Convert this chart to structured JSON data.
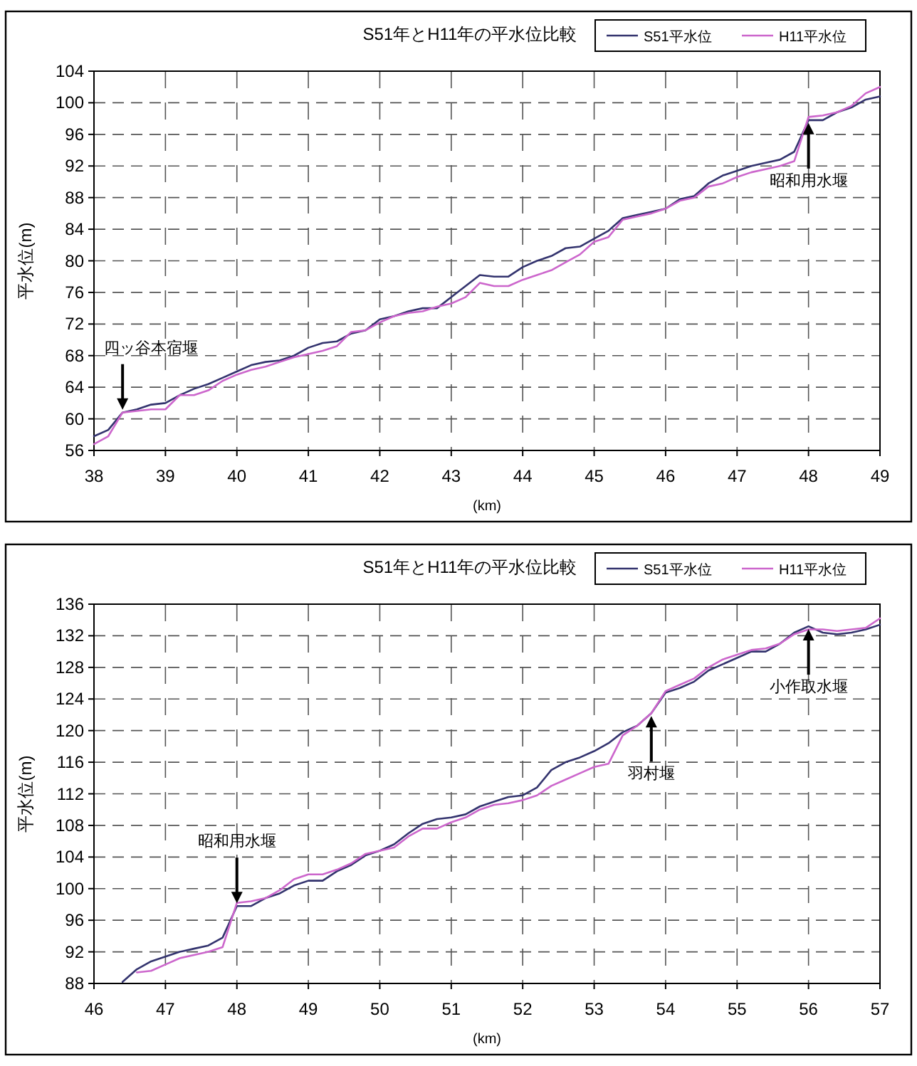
{
  "chart_data": [
    {
      "type": "line",
      "title": "S51年とH11年の平水位比較",
      "xlabel": "(km)",
      "ylabel": "平水位(m)",
      "legend": "top right",
      "grid": true,
      "line_style": "solid",
      "xlim": [
        38,
        49
      ],
      "xticks": [
        38,
        39,
        40,
        41,
        42,
        43,
        44,
        45,
        46,
        47,
        48,
        49
      ],
      "ylim": [
        56,
        104
      ],
      "yticks": [
        56,
        60,
        64,
        68,
        72,
        76,
        80,
        84,
        88,
        92,
        96,
        100,
        104
      ],
      "series": [
        {
          "name": "S51平水位",
          "color": "#33336e",
          "x": [
            38,
            38.2,
            38.4,
            38.6,
            38.8,
            39,
            39.2,
            39.4,
            39.6,
            39.8,
            40,
            40.2,
            40.4,
            40.6,
            40.8,
            41,
            41.2,
            41.4,
            41.6,
            41.8,
            42,
            42.2,
            42.4,
            42.6,
            42.8,
            43,
            43.2,
            43.4,
            43.6,
            43.8,
            44,
            44.2,
            44.4,
            44.6,
            44.8,
            45,
            45.2,
            45.4,
            45.6,
            45.8,
            46,
            46.2,
            46.4,
            46.6,
            46.8,
            47,
            47.2,
            47.4,
            47.6,
            47.8,
            48,
            48.2,
            48.4,
            48.6,
            48.8,
            49
          ],
          "values": [
            57.8,
            58.6,
            60.8,
            61.2,
            61.8,
            62,
            63,
            63.8,
            64.4,
            65.2,
            66,
            66.8,
            67.2,
            67.4,
            68,
            69,
            69.6,
            69.8,
            70.8,
            71.2,
            72.6,
            73,
            73.6,
            74,
            74,
            75.4,
            76.8,
            78.2,
            78,
            78,
            79.2,
            80,
            80.6,
            81.6,
            81.8,
            82.8,
            83.8,
            85.4,
            85.8,
            86.2,
            86.6,
            87.8,
            88.2,
            89.8,
            90.8,
            91.4,
            92,
            92.4,
            92.8,
            93.8,
            97.8,
            97.8,
            98.8,
            99.4,
            100.4,
            100.8
          ]
        },
        {
          "name": "H11平水位",
          "color": "#cc66cc",
          "x": [
            38,
            38.2,
            38.4,
            38.6,
            38.8,
            39,
            39.2,
            39.4,
            39.6,
            39.8,
            40,
            40.2,
            40.4,
            40.6,
            40.8,
            41,
            41.2,
            41.4,
            41.6,
            41.8,
            42,
            42.2,
            42.4,
            42.6,
            42.8,
            43,
            43.2,
            43.4,
            43.6,
            43.8,
            44,
            44.2,
            44.4,
            44.6,
            44.8,
            45,
            45.2,
            45.4,
            45.6,
            45.8,
            46,
            46.2,
            46.4,
            46.6,
            46.8,
            47,
            47.2,
            47.4,
            47.6,
            47.8,
            48,
            48.2,
            48.4,
            48.6,
            48.8,
            49
          ],
          "values": [
            56.8,
            57.8,
            60.8,
            61,
            61.2,
            61.2,
            63,
            63,
            63.6,
            64.8,
            65.6,
            66.2,
            66.6,
            67.2,
            67.8,
            68.2,
            68.6,
            69.2,
            71,
            71.2,
            72.2,
            73,
            73.4,
            73.6,
            74.2,
            74.6,
            75.4,
            77.2,
            76.8,
            76.8,
            77.6,
            78.2,
            78.8,
            79.8,
            80.8,
            82.4,
            83,
            85.2,
            85.6,
            86,
            86.6,
            87.6,
            88,
            89.4,
            89.8,
            90.6,
            91.2,
            91.6,
            92,
            92.6,
            98.2,
            98.4,
            98.8,
            99.6,
            101.2,
            102
          ]
        }
      ],
      "annotations": [
        {
          "text": "四ッ谷本宿堰",
          "x": 38.4,
          "y": 60.8
        },
        {
          "text": "昭和用水堰",
          "x": 48,
          "y": 97.8
        }
      ]
    },
    {
      "type": "line",
      "title": "S51年とH11年の平水位比較",
      "xlabel": "(km)",
      "ylabel": "平水位(m)",
      "legend": "top right",
      "grid": true,
      "line_style": "solid",
      "xlim": [
        46,
        57
      ],
      "xticks": [
        46,
        47,
        48,
        49,
        50,
        51,
        52,
        53,
        54,
        55,
        56,
        57
      ],
      "ylim": [
        88,
        136
      ],
      "yticks": [
        88,
        92,
        96,
        100,
        104,
        108,
        112,
        116,
        120,
        124,
        128,
        132,
        136
      ],
      "series": [
        {
          "name": "S51平水位",
          "color": "#33336e",
          "x": [
            46.4,
            46.6,
            46.8,
            47,
            47.2,
            47.4,
            47.6,
            47.8,
            48,
            48.2,
            48.4,
            48.6,
            48.8,
            49,
            49.2,
            49.4,
            49.6,
            49.8,
            50,
            50.2,
            50.4,
            50.6,
            50.8,
            51,
            51.2,
            51.4,
            51.6,
            51.8,
            52,
            52.2,
            52.4,
            52.6,
            52.8,
            53,
            53.2,
            53.4,
            53.6,
            53.8,
            54,
            54.2,
            54.4,
            54.6,
            54.8,
            55,
            55.2,
            55.4,
            55.6,
            55.8,
            56,
            56.2,
            56.4,
            56.6,
            56.8,
            57
          ],
          "values": [
            88.2,
            89.8,
            90.8,
            91.4,
            92,
            92.4,
            92.8,
            93.8,
            97.8,
            97.8,
            98.8,
            99.4,
            100.4,
            101,
            101,
            102.2,
            103,
            104.2,
            104.8,
            105.6,
            107,
            108.2,
            108.8,
            109,
            109.4,
            110.4,
            111,
            111.6,
            111.8,
            112.8,
            115,
            116,
            116.6,
            117.4,
            118.4,
            119.8,
            120.6,
            122.2,
            124.8,
            125.4,
            126.2,
            127.6,
            128.4,
            129.2,
            130,
            130,
            131,
            132.4,
            133.2,
            132.4,
            132.2,
            132.4,
            132.8,
            133.4
          ]
        },
        {
          "name": "H11平水位",
          "color": "#cc66cc",
          "x": [
            46.6,
            46.8,
            47,
            47.2,
            47.4,
            47.6,
            47.8,
            48,
            48.2,
            48.4,
            48.6,
            48.8,
            49,
            49.2,
            49.4,
            49.6,
            49.8,
            50,
            50.2,
            50.4,
            50.6,
            50.8,
            51,
            51.2,
            51.4,
            51.6,
            51.8,
            52,
            52.2,
            52.4,
            52.6,
            52.8,
            53,
            53.2,
            53.4,
            53.6,
            53.8,
            54,
            54.2,
            54.4,
            54.6,
            54.8,
            55,
            55.2,
            55.4,
            55.6,
            55.8,
            56,
            56.2,
            56.4,
            56.6,
            56.8,
            57
          ],
          "values": [
            89.4,
            89.6,
            90.4,
            91.2,
            91.6,
            92,
            92.6,
            98.2,
            98.4,
            98.8,
            99.8,
            101.2,
            101.8,
            101.8,
            102.4,
            103.2,
            104.4,
            104.8,
            105.2,
            106.6,
            107.6,
            107.6,
            108.4,
            109,
            110,
            110.6,
            110.8,
            111.2,
            111.8,
            113,
            113.8,
            114.6,
            115.4,
            115.8,
            119.4,
            120.6,
            122.2,
            125,
            125.8,
            126.6,
            128,
            129,
            129.6,
            130.2,
            130.4,
            131,
            132.2,
            132.8,
            132.8,
            132.6,
            132.8,
            133,
            134.2
          ]
        }
      ],
      "annotations": [
        {
          "text": "昭和用水堰",
          "x": 48,
          "y": 97.8
        },
        {
          "text": "羽村堰",
          "x": 53.8,
          "y": 122.2
        },
        {
          "text": "小作取水堰",
          "x": 56,
          "y": 133.2
        }
      ]
    }
  ]
}
